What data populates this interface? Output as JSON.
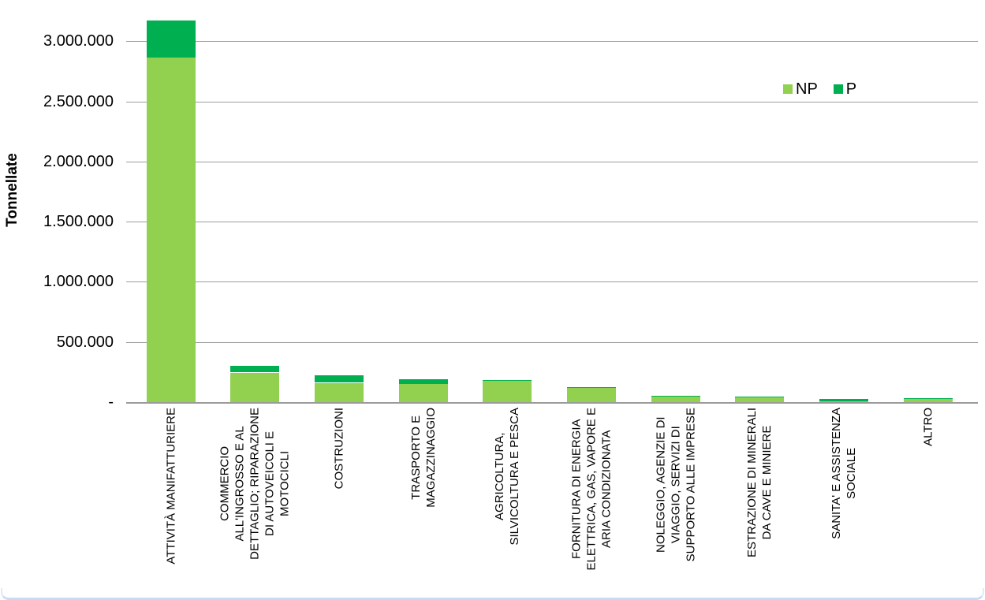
{
  "chart_data": {
    "type": "bar",
    "stacked": true,
    "orientation": "vertical",
    "title": "",
    "xlabel": "",
    "ylabel": "Tonnellate",
    "grid": true,
    "legend_position": "top-right",
    "ylim": [
      0,
      3200000
    ],
    "ytick_values": [
      0,
      500000,
      1000000,
      1500000,
      2000000,
      2500000,
      3000000
    ],
    "ytick_labels": [
      "-",
      "500.000",
      "1.000.000",
      "1.500.000",
      "2.000.000",
      "2.500.000",
      "3.000.000"
    ],
    "categories": [
      "ATTIVITÀ MANIFATTURIERE",
      "COMMERCIO ALL'INGROSSO E AL DETTAGLIO; RIPARAZIONE DI AUTOVEICOLI E MOTOCICLI",
      "COSTRUZIONI",
      "TRASPORTO E MAGAZZINAGGIO",
      "AGRICOLTURA, SILVICOLTURA E PESCA",
      "FORNITURA DI ENERGIA ELETTRICA, GAS, VAPORE E ARIA CONDIZIONATA",
      "NOLEGGIO, AGENZIE DI VIAGGIO, SERVIZI DI SUPPORTO ALLE IMPRESE",
      "ESTRAZIONE DI MINERALI DA CAVE E MINIERE",
      "SANITA' E ASSISTENZA SOCIALE",
      "ALTRO"
    ],
    "category_label_lines": [
      [
        "ATTIVITÀ MANIFATTURIERE"
      ],
      [
        "COMMERCIO",
        "ALL'INGROSSO E AL",
        "DETTAGLIO; RIPARAZIONE",
        "DI AUTOVEICOLI E",
        "MOTOCICLI"
      ],
      [
        "COSTRUZIONI"
      ],
      [
        "TRASPORTO E",
        "MAGAZZINAGGIO"
      ],
      [
        "AGRICOLTURA,",
        "SILVICOLTURA E PESCA"
      ],
      [
        "FORNITURA DI ENERGIA",
        "ELETTRICA, GAS, VAPORE E",
        "ARIA CONDIZIONATA"
      ],
      [
        "NOLEGGIO, AGENZIE DI",
        "VIAGGIO, SERVIZI DI",
        "SUPPORTO ALLE IMPRESE"
      ],
      [
        "ESTRAZIONE DI MINERALI",
        "DA CAVE E MINIERE"
      ],
      [
        "SANITA' E ASSISTENZA",
        "SOCIALE"
      ],
      [
        "ALTRO"
      ]
    ],
    "series": [
      {
        "name": "NP",
        "color": "#92D050",
        "values": [
          2870000,
          245000,
          160000,
          153000,
          176000,
          120000,
          50000,
          42000,
          6000,
          28000
        ]
      },
      {
        "name": "P",
        "color": "#00B050",
        "values": [
          305000,
          55000,
          62000,
          37000,
          8000,
          6000,
          6000,
          5000,
          19000,
          5000
        ]
      }
    ]
  },
  "colors": {
    "gridline": "#9e9e9e",
    "axis_line": "#9b9b9b",
    "text": "#000000",
    "window_edge": "#c7dcf4"
  }
}
